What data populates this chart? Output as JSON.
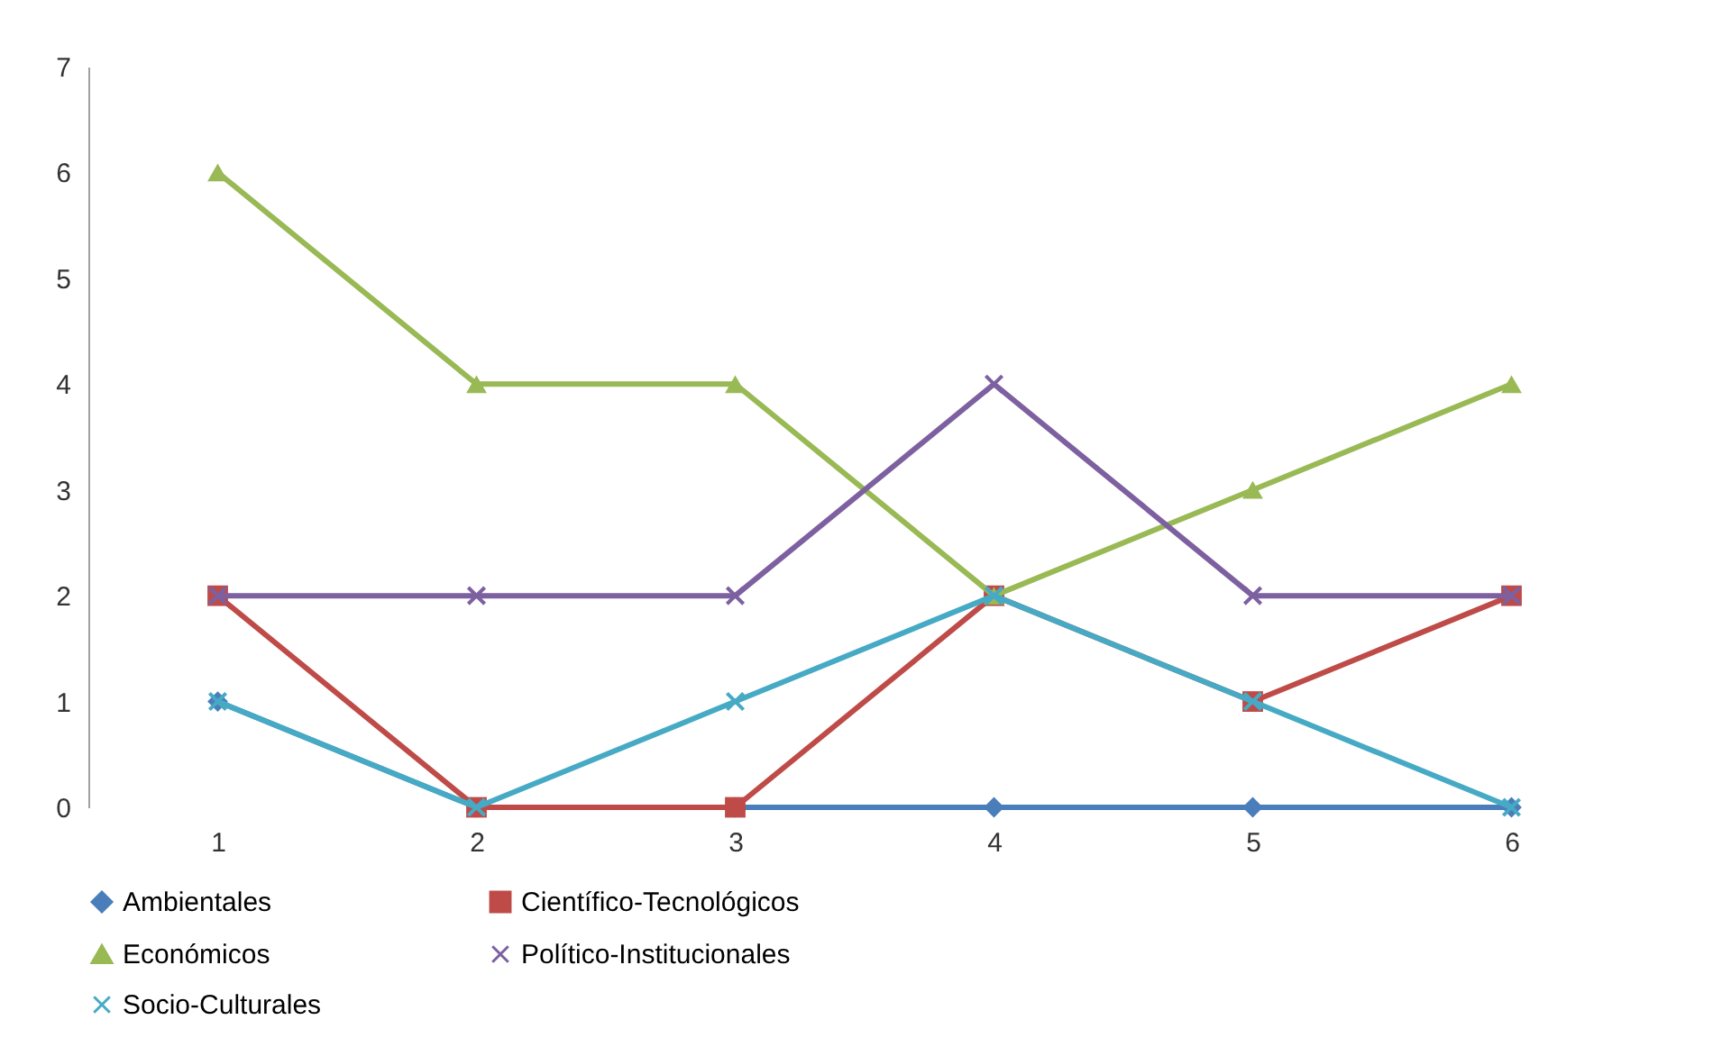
{
  "chart_data": {
    "type": "line",
    "categories": [
      "1",
      "2",
      "3",
      "4",
      "5",
      "6"
    ],
    "series": [
      {
        "name": "Ambientales",
        "color": "#4a7ebb",
        "marker": "diamond",
        "values": [
          1,
          0,
          0,
          0,
          0,
          0
        ]
      },
      {
        "name": "Científico-Tecnológicos",
        "color": "#be4b48",
        "marker": "square",
        "values": [
          2,
          0,
          0,
          2,
          1,
          2
        ]
      },
      {
        "name": "Económicos",
        "color": "#98b954",
        "marker": "triangle",
        "values": [
          6,
          4,
          4,
          2,
          3,
          4
        ]
      },
      {
        "name": "Político-Institucionales",
        "color": "#7d60a0",
        "marker": "cross",
        "values": [
          2,
          2,
          2,
          4,
          2,
          2
        ]
      },
      {
        "name": "Socio-Culturales",
        "color": "#46aac5",
        "marker": "cross",
        "values": [
          1,
          0,
          1,
          2,
          1,
          0
        ]
      }
    ],
    "ylim": [
      0,
      7
    ],
    "yticks": [
      0,
      1,
      2,
      3,
      4,
      5,
      6,
      7
    ],
    "grid": false,
    "legend": "bottom",
    "line_style": "solid"
  }
}
